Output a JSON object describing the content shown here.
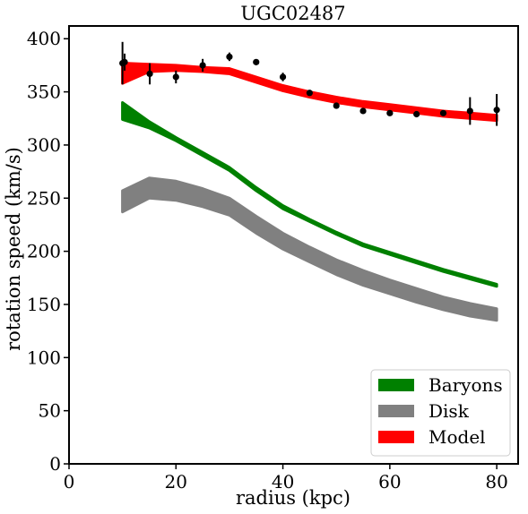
{
  "chart_data": {
    "type": "line",
    "title": "UGC02487",
    "xlabel": "radius (kpc)",
    "ylabel": "rotation speed (km/s)",
    "xlim": [
      0,
      84
    ],
    "ylim": [
      0,
      412
    ],
    "xticks": [
      0,
      20,
      40,
      60,
      80
    ],
    "yticks": [
      0,
      50,
      100,
      150,
      200,
      250,
      300,
      350,
      400
    ],
    "grid": false,
    "legend_position": "lower-right",
    "bands": [
      {
        "name": "Baryons",
        "color": "#008000",
        "x": [
          10,
          15,
          20,
          25,
          30,
          35,
          40,
          45,
          50,
          55,
          60,
          65,
          70,
          75,
          80
        ],
        "lower": [
          324,
          316,
          304,
          290,
          276,
          257,
          240,
          228,
          216,
          205,
          197,
          189,
          181,
          174,
          167
        ],
        "upper": [
          340,
          322,
          307,
          293,
          279,
          260,
          243,
          230,
          218,
          207,
          199,
          191,
          183,
          176,
          169
        ]
      },
      {
        "name": "Disk",
        "color": "#808080",
        "x": [
          10,
          15,
          20,
          25,
          30,
          35,
          40,
          45,
          50,
          55,
          60,
          65,
          70,
          75,
          80
        ],
        "lower": [
          237,
          250,
          248,
          242,
          234,
          217,
          202,
          190,
          178,
          168,
          160,
          152,
          145,
          139,
          135
        ],
        "upper": [
          257,
          269,
          266,
          259,
          250,
          233,
          217,
          204,
          192,
          182,
          173,
          165,
          157,
          151,
          146
        ]
      },
      {
        "name": "Model",
        "color": "#ff0000",
        "x": [
          10,
          15,
          20,
          25,
          30,
          35,
          40,
          45,
          50,
          55,
          60,
          65,
          70,
          75,
          80
        ],
        "lower": [
          358,
          369,
          370,
          369,
          367,
          359,
          351,
          345,
          340,
          336,
          333,
          330,
          327,
          325,
          323
        ],
        "upper": [
          377,
          376,
          375,
          373,
          372,
          364,
          356,
          350,
          345,
          341,
          338,
          335,
          332,
          330,
          328
        ]
      }
    ],
    "observations": {
      "color": "#000000",
      "points": [
        {
          "x": 10.0,
          "y": 377,
          "err": 20
        },
        {
          "x": 10.4,
          "y": 378,
          "err": 8
        },
        {
          "x": 15.1,
          "y": 367,
          "err": 10
        },
        {
          "x": 20.0,
          "y": 364,
          "err": 6
        },
        {
          "x": 25.0,
          "y": 375,
          "err": 6
        },
        {
          "x": 30.0,
          "y": 383,
          "err": 4
        },
        {
          "x": 35.0,
          "y": 378,
          "err": 2
        },
        {
          "x": 40.0,
          "y": 364,
          "err": 4
        },
        {
          "x": 45.0,
          "y": 349,
          "err": 2
        },
        {
          "x": 50.0,
          "y": 337,
          "err": 2
        },
        {
          "x": 55.0,
          "y": 332,
          "err": 2
        },
        {
          "x": 60.0,
          "y": 330,
          "err": 2
        },
        {
          "x": 65.0,
          "y": 329,
          "err": 2
        },
        {
          "x": 70.0,
          "y": 330,
          "err": 2
        },
        {
          "x": 75.0,
          "y": 332,
          "err": 13
        },
        {
          "x": 80.0,
          "y": 333,
          "err": 15
        }
      ]
    },
    "legend": [
      {
        "label": "Baryons",
        "color": "#008000"
      },
      {
        "label": "Disk",
        "color": "#808080"
      },
      {
        "label": "Model",
        "color": "#ff0000"
      }
    ]
  }
}
